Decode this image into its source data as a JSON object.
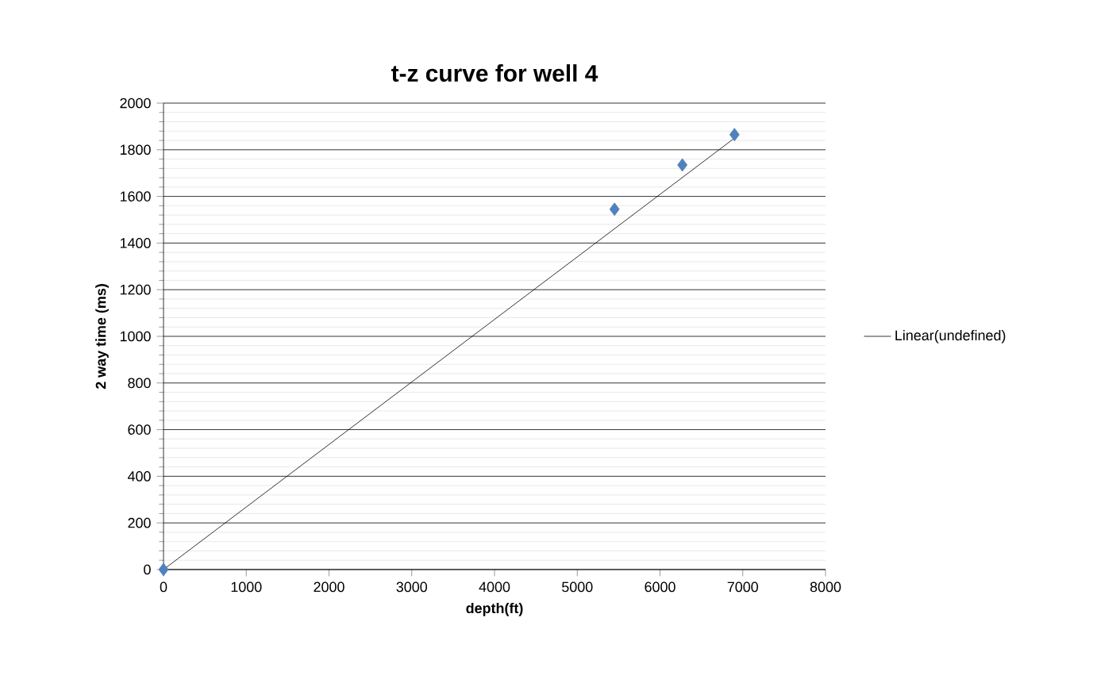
{
  "chart_data": {
    "type": "scatter",
    "title": "t-z curve for well 4",
    "xlabel": "depth(ft)",
    "ylabel": "2 way time (ms)",
    "series": [
      {
        "color": "#4f81bd",
        "x": [
          0,
          5450,
          6270,
          6900
        ],
        "values": [
          0,
          1545,
          1735,
          1865
        ],
        "marker": "diamond"
      },
      {
        "type": "line",
        "name": "Linear(undefined)",
        "color": "#000000",
        "x": [
          0,
          6900
        ],
        "values": [
          0,
          1850
        ],
        "marker": "none"
      }
    ],
    "xlim": [
      0,
      8000
    ],
    "xticks": [
      0,
      1000,
      2000,
      3000,
      4000,
      5000,
      6000,
      7000,
      8000
    ],
    "ylim": [
      0,
      2000
    ],
    "yticks": [
      0,
      200,
      400,
      600,
      800,
      1000,
      1200,
      1400,
      1600,
      1800,
      2000
    ],
    "grid": "y",
    "legend": "right"
  }
}
